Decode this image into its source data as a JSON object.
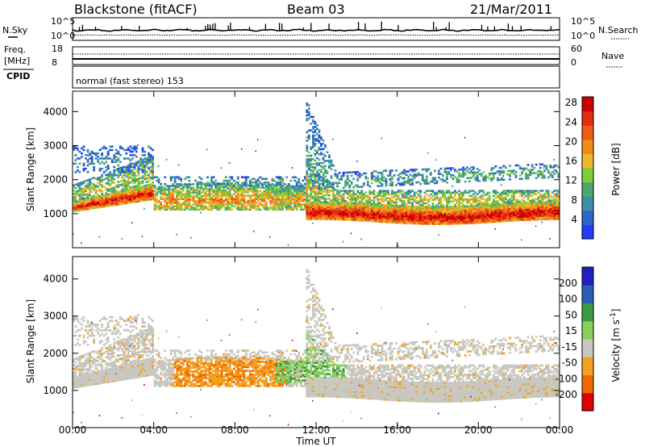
{
  "header": {
    "station": "Blackstone (fitACF)",
    "beam": "Beam 03",
    "date": "21/Mar/2011"
  },
  "noise_panel": {
    "left_label": "N.Sky",
    "right_label": "N.Search",
    "left_ticks": [
      "10^5",
      "10^0"
    ],
    "right_ticks": [
      "10^5",
      "10^0"
    ]
  },
  "freq_panel": {
    "left_label_1": "Freq.",
    "left_label_2": "[MHz]",
    "right_label": "Nave",
    "left_ticks": [
      "18",
      "8"
    ],
    "right_ticks": [
      "60",
      "0"
    ]
  },
  "cpid_panel": {
    "label": "CPID",
    "text": "normal (fast stereo) 153"
  },
  "colors": {
    "power": [
      "#1f3cff",
      "#2e66c8",
      "#3a8fa8",
      "#4ea86a",
      "#7ccc3c",
      "#f0b62a",
      "#f28a18",
      "#ef5a14",
      "#e32a12",
      "#cc0000"
    ],
    "velocity": [
      "#e00000",
      "#f06a00",
      "#f2a020",
      "#c8c8c0",
      "#88d05a",
      "#3a9a46",
      "#2a5fb4",
      "#2020c0"
    ],
    "background": "#ffffff"
  },
  "chart_data": [
    {
      "type": "heatmap",
      "panel": "power",
      "ylabel": "Slant Range [km]",
      "yticks": [
        "1000",
        "2000",
        "3000",
        "4000"
      ],
      "ylim": [
        0,
        4600
      ],
      "x": [
        "00:00",
        "04:00",
        "08:00",
        "12:00",
        "16:00",
        "20:00",
        "00:00"
      ],
      "xlim_hours": [
        0,
        24
      ],
      "colorbar": {
        "label": "Power [dB]",
        "ticks": [
          "4",
          "8",
          "12",
          "16",
          "20",
          "24",
          "28"
        ],
        "range": [
          0,
          30
        ]
      },
      "features": [
        {
          "hours": [
            0,
            4
          ],
          "range_km": [
            1100,
            1700
          ],
          "description": "strong echo band"
        },
        {
          "hours": [
            4,
            11
          ],
          "range_km": [
            1100,
            1900
          ],
          "description": "medium echo band"
        },
        {
          "hours": [
            11.5,
            24
          ],
          "range_km": [
            800,
            1200
          ],
          "description": "strong ground-scatter band"
        },
        {
          "hours": [
            11.5,
            24
          ],
          "range_km": [
            1400,
            2400
          ],
          "description": "upper weak band"
        }
      ]
    },
    {
      "type": "heatmap",
      "panel": "velocity",
      "ylabel": "Slant Range [km]",
      "yticks": [
        "1000",
        "2000",
        "3000",
        "4000"
      ],
      "ylim": [
        0,
        4600
      ],
      "x": [
        "00:00",
        "04:00",
        "08:00",
        "12:00",
        "16:00",
        "20:00",
        "00:00"
      ],
      "xlim_hours": [
        0,
        24
      ],
      "xlabel": "Time UT",
      "colorbar": {
        "label": "Velocity [m s^-1]",
        "ticks": [
          "200",
          "100",
          "50",
          "15",
          "-15",
          "-50",
          "-100",
          "-200"
        ],
        "range": [
          -250,
          250
        ]
      }
    }
  ]
}
